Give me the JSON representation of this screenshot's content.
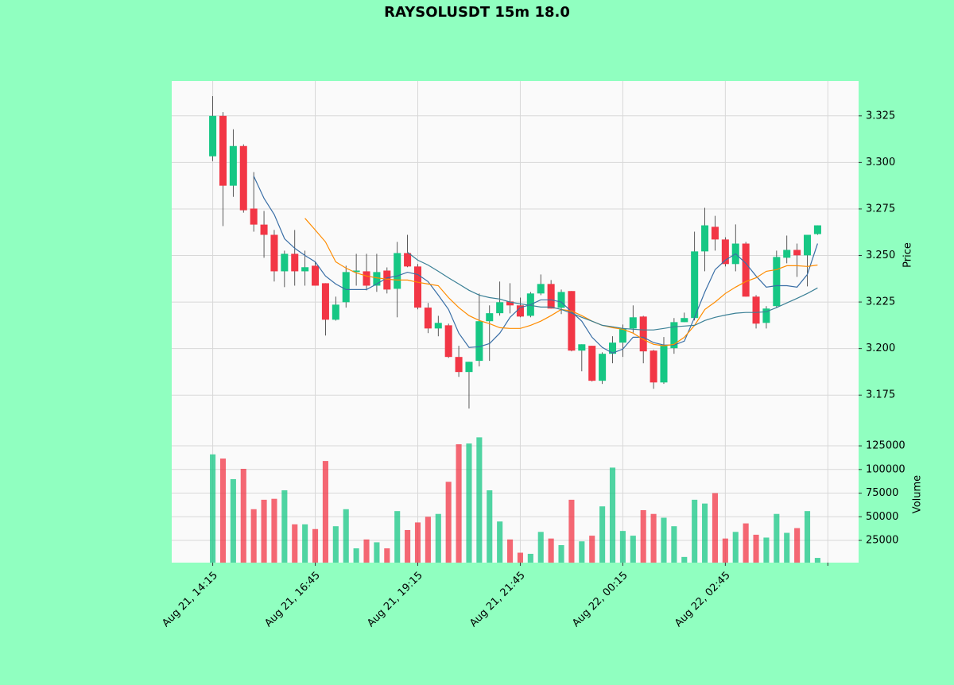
{
  "chart_data": {
    "type": "candlestick",
    "title": "RAYSOLUSDT 15m 18.0",
    "ylabel": "Price",
    "volume_label": "Volume",
    "up_color": "#16c784",
    "down_color": "#f23645",
    "grid": true,
    "xlim": [
      -4,
      63
    ],
    "xticks": [
      {
        "value": 0,
        "label": "Aug 21, 14:15"
      },
      {
        "value": 10,
        "label": "Aug 21, 16:45"
      },
      {
        "value": 20,
        "label": "Aug 21, 19:15"
      },
      {
        "value": 30,
        "label": "Aug 21, 21:45"
      },
      {
        "value": 40,
        "label": "Aug 22, 00:15"
      },
      {
        "value": 50,
        "label": "Aug 22, 02:45"
      },
      {
        "value": 60,
        "label": null
      }
    ],
    "ylim": [
      3.1546,
      3.3437
    ],
    "yticks": [
      3.175,
      {
        "value": 3.2,
        "label": "3.200"
      },
      3.225,
      {
        "value": 3.25,
        "label": "3.250"
      },
      3.275,
      {
        "value": 3.3,
        "label": "3.300"
      },
      3.325
    ],
    "volume_ylim": [
      1500,
      138500
    ],
    "volume_yticks": [
      25000,
      50000,
      75000,
      100000,
      125000
    ],
    "open": [
      3.3033,
      3.325,
      3.2875,
      3.3088,
      3.2752,
      3.2666,
      3.2611,
      3.2415,
      3.2509,
      3.2415,
      3.2445,
      3.2351,
      3.2155,
      3.2249,
      3.2411,
      3.2415,
      3.2338,
      3.2419,
      3.2321,
      3.2513,
      3.2441,
      3.222,
      3.2108,
      3.2125,
      3.1955,
      3.1874,
      3.1934,
      3.2147,
      3.219,
      3.2253,
      3.2232,
      3.2176,
      3.2296,
      3.2347,
      3.2219,
      3.2309,
      3.1989,
      3.2015,
      3.1827,
      3.1972,
      3.2032,
      3.2108,
      3.2172,
      3.1989,
      3.1818,
      3.2002,
      3.2142,
      3.2164,
      3.2522,
      3.2654,
      3.2586,
      3.2454,
      3.2564,
      3.2279,
      3.2138,
      3.2228,
      3.2488,
      3.253,
      3.2501,
      3.2615
    ],
    "high": [
      3.3356,
      3.327,
      3.3178,
      3.3097,
      3.2948,
      3.2739,
      3.2637,
      3.2526,
      3.2637,
      3.2526,
      3.2466,
      3.2351,
      3.2279,
      3.2445,
      3.2509,
      3.2509,
      3.2509,
      3.2436,
      3.2573,
      3.2611,
      3.2454,
      3.2245,
      3.2176,
      3.2134,
      3.2015,
      3.1929,
      3.2296,
      3.2232,
      3.236,
      3.2351,
      3.2274,
      3.2304,
      3.2398,
      3.2368,
      3.2317,
      3.2309,
      3.2023,
      3.2015,
      3.198,
      3.2066,
      3.2129,
      3.2232,
      3.2176,
      3.1993,
      3.2062,
      3.2164,
      3.2193,
      3.2628,
      3.2756,
      3.2713,
      3.2598,
      3.2667,
      3.2573,
      3.2287,
      3.2228,
      3.2526,
      3.2607,
      3.2564,
      3.2611,
      3.2662
    ],
    "low": [
      3.3007,
      3.2658,
      3.2815,
      3.273,
      3.2628,
      3.2488,
      3.236,
      3.233,
      3.2338,
      3.2338,
      3.2338,
      3.207,
      3.215,
      3.222,
      3.2338,
      3.2313,
      3.2305,
      3.2296,
      3.2168,
      3.2437,
      3.2211,
      3.2083,
      3.2066,
      3.195,
      3.1848,
      3.1678,
      3.1904,
      3.1934,
      3.2177,
      3.2189,
      3.2168,
      3.2168,
      3.2287,
      3.2215,
      3.2185,
      3.1985,
      3.1878,
      3.1823,
      3.181,
      3.1921,
      3.1955,
      3.2083,
      3.1921,
      3.1784,
      3.181,
      3.1972,
      3.2142,
      3.2151,
      3.2415,
      3.2526,
      3.2441,
      3.2415,
      3.2279,
      3.2108,
      3.2108,
      3.2219,
      3.2458,
      3.2385,
      3.2334,
      3.2611
    ],
    "close": [
      3.325,
      3.2875,
      3.3088,
      3.2743,
      3.2666,
      3.2611,
      3.2415,
      3.2509,
      3.2415,
      3.2437,
      3.2338,
      3.2155,
      3.2236,
      3.2411,
      3.2419,
      3.2338,
      3.2411,
      3.2317,
      3.2513,
      3.2441,
      3.222,
      3.2108,
      3.2138,
      3.1955,
      3.1874,
      3.1929,
      3.2147,
      3.219,
      3.2249,
      3.2232,
      3.2172,
      3.2296,
      3.2347,
      3.2215,
      3.2304,
      3.1989,
      3.2023,
      3.1827,
      3.1972,
      3.2032,
      3.2108,
      3.2168,
      3.1985,
      3.1818,
      3.2015,
      3.2142,
      3.2164,
      3.2522,
      3.2662,
      3.2586,
      3.2454,
      3.2564,
      3.2279,
      3.2134,
      3.2215,
      3.2492,
      3.253,
      3.2501,
      3.2611,
      3.2662
    ],
    "volume": [
      116000,
      111600,
      89800,
      100700,
      58000,
      68000,
      69000,
      78000,
      42000,
      42000,
      37000,
      109000,
      40000,
      58000,
      16600,
      26000,
      23000,
      16600,
      56000,
      36000,
      44000,
      50000,
      53000,
      87000,
      126700,
      127500,
      134000,
      78000,
      45000,
      26000,
      12000,
      10800,
      34000,
      27000,
      20000,
      68000,
      24000,
      30000,
      61000,
      102000,
      35000,
      30000,
      57000,
      53000,
      49000,
      40000,
      7500,
      68000,
      64000,
      75000,
      27000,
      34000,
      43000,
      31000,
      28000,
      53000,
      33000,
      38000,
      56000,
      6500
    ],
    "moving_averages": [
      {
        "color": "#3a6fa6",
        "values": [
          null,
          null,
          null,
          null,
          3.2926,
          3.2807,
          3.272,
          3.259,
          3.2539,
          3.25,
          3.2466,
          3.239,
          3.2347,
          3.2317,
          3.2317,
          3.2317,
          3.2347,
          3.238,
          3.239,
          3.241,
          3.2398,
          3.236,
          3.2287,
          3.221,
          3.2083,
          3.2006,
          3.201,
          3.2027,
          3.2083,
          3.2168,
          3.222,
          3.2236,
          3.2262,
          3.2262,
          3.225,
          3.2198,
          3.2147,
          3.2061,
          3.2006,
          3.1976,
          3.1997,
          3.2061,
          3.2061,
          3.2032,
          3.2019,
          3.2019,
          3.204,
          3.2168,
          3.2304,
          3.2424,
          3.2475,
          3.2509,
          3.2458,
          3.239,
          3.233,
          3.2338,
          3.2338,
          3.233,
          3.2398,
          3.2564
        ]
      },
      {
        "color": "#ff8c00",
        "values": [
          null,
          null,
          null,
          null,
          null,
          null,
          null,
          null,
          null,
          3.27,
          3.2637,
          3.2573,
          3.2466,
          3.2432,
          3.2406,
          3.239,
          3.238,
          3.2373,
          3.2368,
          3.2368,
          3.2356,
          3.2347,
          3.2338,
          3.2274,
          3.222,
          3.2177,
          3.2151,
          3.2134,
          3.2112,
          3.2108,
          3.2108,
          3.2125,
          3.2147,
          3.2177,
          3.221,
          3.2202,
          3.2177,
          3.2147,
          3.2125,
          3.2112,
          3.2104,
          3.2083,
          3.2049,
          3.2023,
          3.2015,
          3.2023,
          3.2061,
          3.2125,
          3.221,
          3.225,
          3.2296,
          3.233,
          3.236,
          3.238,
          3.2415,
          3.2424,
          3.2445,
          3.2445,
          3.2441,
          3.2449
        ]
      },
      {
        "color": "#3b8096",
        "values": [
          null,
          null,
          null,
          null,
          null,
          null,
          null,
          null,
          null,
          null,
          null,
          null,
          null,
          null,
          null,
          null,
          null,
          null,
          null,
          3.2517,
          3.2475,
          3.2449,
          3.2415,
          3.238,
          3.2347,
          3.2313,
          3.2287,
          3.2274,
          3.2266,
          3.225,
          3.224,
          3.2232,
          3.2223,
          3.2223,
          3.221,
          3.219,
          3.2168,
          3.2147,
          3.2125,
          3.2117,
          3.2108,
          3.2104,
          3.21,
          3.21,
          3.2108,
          3.2117,
          3.2121,
          3.2125,
          3.2151,
          3.2168,
          3.218,
          3.219,
          3.2194,
          3.2194,
          3.2198,
          3.222,
          3.2245,
          3.227,
          3.2296,
          3.2326
        ]
      }
    ]
  }
}
